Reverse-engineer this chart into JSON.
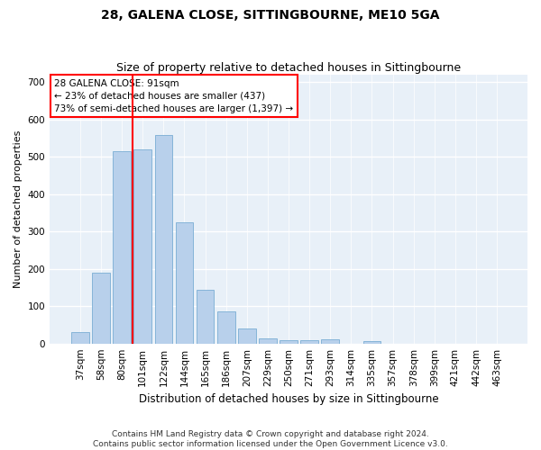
{
  "title": "28, GALENA CLOSE, SITTINGBOURNE, ME10 5GA",
  "subtitle": "Size of property relative to detached houses in Sittingbourne",
  "xlabel": "Distribution of detached houses by size in Sittingbourne",
  "ylabel": "Number of detached properties",
  "categories": [
    "37sqm",
    "58sqm",
    "80sqm",
    "101sqm",
    "122sqm",
    "144sqm",
    "165sqm",
    "186sqm",
    "207sqm",
    "229sqm",
    "250sqm",
    "271sqm",
    "293sqm",
    "314sqm",
    "335sqm",
    "357sqm",
    "378sqm",
    "399sqm",
    "421sqm",
    "442sqm",
    "463sqm"
  ],
  "values": [
    30,
    190,
    515,
    520,
    560,
    325,
    145,
    85,
    40,
    13,
    8,
    8,
    12,
    0,
    7,
    0,
    0,
    0,
    0,
    0,
    0
  ],
  "bar_color": "#b8d0eb",
  "bar_edge_color": "#7aadd4",
  "vline_color": "red",
  "vline_pos": 2.5,
  "annotation_text": "28 GALENA CLOSE: 91sqm\n← 23% of detached houses are smaller (437)\n73% of semi-detached houses are larger (1,397) →",
  "annotation_box_color": "white",
  "annotation_box_edge": "red",
  "ylim": [
    0,
    720
  ],
  "yticks": [
    0,
    100,
    200,
    300,
    400,
    500,
    600,
    700
  ],
  "background_color": "#e8f0f8",
  "grid_color": "white",
  "footer": "Contains HM Land Registry data © Crown copyright and database right 2024.\nContains public sector information licensed under the Open Government Licence v3.0.",
  "title_fontsize": 10,
  "subtitle_fontsize": 9,
  "xlabel_fontsize": 8.5,
  "ylabel_fontsize": 8,
  "tick_fontsize": 7.5,
  "footer_fontsize": 6.5,
  "annotation_fontsize": 7.5
}
